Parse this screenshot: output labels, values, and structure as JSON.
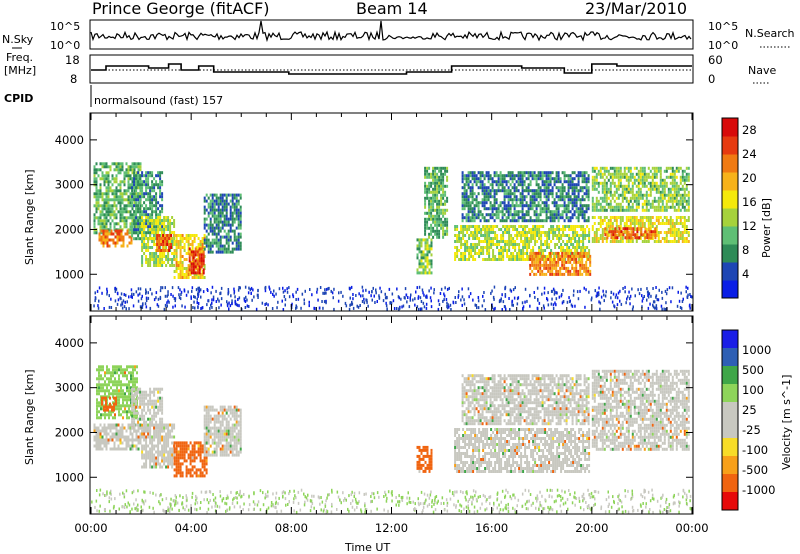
{
  "header": {
    "station": "Prince George (fitACF)",
    "beam": "Beam 14",
    "date": "23/Mar/2010"
  },
  "labels": {
    "nsky": "N.Sky",
    "nsearch": "N.Search",
    "freq_line1": "Freq.",
    "freq_line2": "[MHz]",
    "nave": "Nave",
    "cpid": "CPID",
    "mode": "normalsound (fast) 157",
    "nsky_top": "10^5",
    "nsky_bottom": "10^0",
    "nsearch_top": "10^5",
    "nsearch_bottom": "10^0",
    "freq_top": "18",
    "freq_bottom": "8",
    "nave_top": "60",
    "nave_bottom": "0"
  },
  "colors": {
    "power_scale": [
      "#0a1ee6",
      "#1e46b4",
      "#2e8b57",
      "#5fbf75",
      "#a6d23c",
      "#f5e90a",
      "#f7b21a",
      "#f07a12",
      "#e63a10",
      "#d80a0a"
    ],
    "velocity_scale": [
      "#e60a0a",
      "#f06410",
      "#f7a01a",
      "#f7dc28",
      "#c8c8c0",
      "#c8c8c0",
      "#8ed45a",
      "#3fa648",
      "#2e5fb4",
      "#1a1ee6"
    ]
  },
  "chart_data": [
    {
      "type": "heatmap",
      "title": "Power",
      "ylabel": "Slant Range [km]",
      "xlabel": "Time UT",
      "xlim": [
        "00:00",
        "24:00"
      ],
      "ylim": [
        180,
        4600
      ],
      "x_ticks": [
        "00:00",
        "04:00",
        "08:00",
        "12:00",
        "16:00",
        "20:00",
        "00:00"
      ],
      "y_ticks": [
        1000,
        2000,
        3000,
        4000
      ],
      "colorbar": {
        "label": "Power [dB]",
        "ticks": [
          4,
          8,
          12,
          16,
          20,
          24,
          28
        ],
        "range": [
          0,
          30
        ]
      },
      "regions": [
        {
          "t": [
            0.1,
            2.0
          ],
          "r": [
            1900,
            3500
          ],
          "value": 10
        },
        {
          "t": [
            0.3,
            1.6
          ],
          "r": [
            1600,
            2000
          ],
          "value": 22
        },
        {
          "t": [
            1.6,
            2.8
          ],
          "r": [
            1800,
            3300
          ],
          "value": 8
        },
        {
          "t": [
            2.0,
            3.3
          ],
          "r": [
            1200,
            2300
          ],
          "value": 14
        },
        {
          "t": [
            2.6,
            3.2
          ],
          "r": [
            1500,
            1900
          ],
          "value": 24
        },
        {
          "t": [
            3.3,
            4.5
          ],
          "r": [
            900,
            1900
          ],
          "value": 18
        },
        {
          "t": [
            3.9,
            4.5
          ],
          "r": [
            1000,
            1600
          ],
          "value": 26
        },
        {
          "t": [
            4.5,
            6.0
          ],
          "r": [
            1500,
            2800
          ],
          "value": 7
        },
        {
          "t": [
            13.0,
            13.6
          ],
          "r": [
            1000,
            1800
          ],
          "value": 12
        },
        {
          "t": [
            13.3,
            14.2
          ],
          "r": [
            1800,
            3400
          ],
          "value": 10
        },
        {
          "t": [
            14.5,
            19.9
          ],
          "r": [
            1300,
            2100
          ],
          "value": 14
        },
        {
          "t": [
            17.5,
            19.9
          ],
          "r": [
            1000,
            1500
          ],
          "value": 22
        },
        {
          "t": [
            14.8,
            19.9
          ],
          "r": [
            2200,
            3300
          ],
          "value": 7
        },
        {
          "t": [
            20.0,
            23.9
          ],
          "r": [
            1700,
            2300
          ],
          "value": 16
        },
        {
          "t": [
            20.5,
            22.5
          ],
          "r": [
            1800,
            2050
          ],
          "value": 24
        },
        {
          "t": [
            20.0,
            23.9
          ],
          "r": [
            2400,
            3400
          ],
          "value": 12
        }
      ]
    },
    {
      "type": "heatmap",
      "title": "Velocity",
      "ylabel": "Slant Range [km]",
      "xlabel": "Time UT",
      "xlim": [
        "00:00",
        "24:00"
      ],
      "ylim": [
        180,
        4600
      ],
      "x_ticks": [
        "00:00",
        "04:00",
        "08:00",
        "12:00",
        "16:00",
        "20:00",
        "00:00"
      ],
      "y_ticks": [
        1000,
        2000,
        3000,
        4000
      ],
      "colorbar": {
        "label": "Velocity [m s^-1]",
        "ticks": [
          1000,
          500,
          100,
          25,
          -25,
          -100,
          -500,
          -1000
        ]
      },
      "regions": [
        {
          "t": [
            0.1,
            2.0
          ],
          "r": [
            1600,
            2200
          ],
          "value": 0
        },
        {
          "t": [
            0.2,
            1.8
          ],
          "r": [
            2300,
            3500
          ],
          "value": 60
        },
        {
          "t": [
            0.4,
            1.0
          ],
          "r": [
            2500,
            2800
          ],
          "value": -200
        },
        {
          "t": [
            1.6,
            2.8
          ],
          "r": [
            2000,
            3000
          ],
          "value": 0
        },
        {
          "t": [
            2.0,
            3.3
          ],
          "r": [
            1200,
            2200
          ],
          "value": 0
        },
        {
          "t": [
            3.3,
            4.6
          ],
          "r": [
            1000,
            1800
          ],
          "value": -200
        },
        {
          "t": [
            4.5,
            6.0
          ],
          "r": [
            1500,
            2600
          ],
          "value": 0
        },
        {
          "t": [
            13.0,
            13.6
          ],
          "r": [
            1100,
            1700
          ],
          "value": -200
        },
        {
          "t": [
            14.5,
            19.9
          ],
          "r": [
            1100,
            2100
          ],
          "value": 0
        },
        {
          "t": [
            14.8,
            19.9
          ],
          "r": [
            2200,
            3300
          ],
          "value": 0
        },
        {
          "t": [
            20.0,
            23.9
          ],
          "r": [
            1600,
            3400
          ],
          "value": 0
        }
      ]
    }
  ]
}
